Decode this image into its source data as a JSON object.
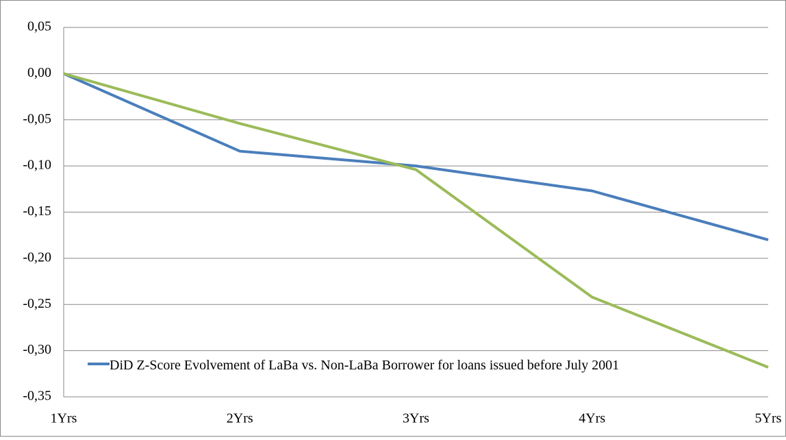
{
  "chart_data": {
    "type": "line",
    "categories": [
      "1Yrs",
      "2Yrs",
      "3Yrs",
      "4Yrs",
      "5Yrs"
    ],
    "series": [
      {
        "name": "DiD Z-Score Evolvement of LaBa vs. Non-LaBa Borrower for loans issued before July 2001",
        "color": "#4a7ebb",
        "values": [
          0,
          -0.084,
          -0.1,
          -0.127,
          -0.18
        ]
      },
      {
        "color": "#9bbb59",
        "values": [
          0,
          -0.054,
          -0.104,
          -0.242,
          -0.318
        ]
      }
    ],
    "ylim": [
      -0.35,
      0.05
    ],
    "yticks": [
      {
        "value": 0.05,
        "label": "0,05"
      },
      {
        "value": 0,
        "label": "0,00"
      },
      {
        "value": -0.05,
        "label": "-0,05"
      },
      {
        "value": -0.1,
        "label": "-0,10"
      },
      {
        "value": -0.15,
        "label": "-0,15"
      },
      {
        "value": -0.2,
        "label": "-0,20"
      },
      {
        "value": -0.25,
        "label": "-0,25"
      },
      {
        "value": -0.3,
        "label": "-0,30"
      },
      {
        "value": -0.35,
        "label": "-0,35"
      }
    ],
    "grid": true,
    "legend": "bottom-left"
  }
}
